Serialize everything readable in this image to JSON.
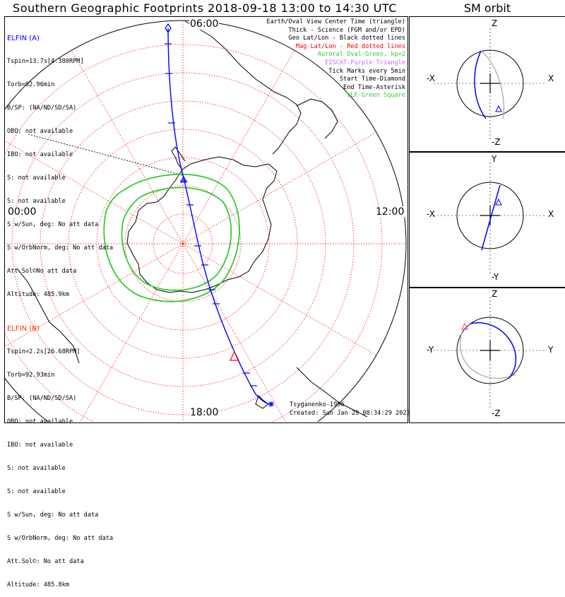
{
  "title": "Southern Geographic Footprints 2018-09-18 13:00 to 14:30 UTC",
  "sm_title": "SM orbit",
  "hours": {
    "top": "06:00",
    "left": "00:00",
    "right": "12:00",
    "bottom": "18:00"
  },
  "elfin_a": {
    "name": "ELFIN (A)",
    "color": "#0000ff",
    "lines": [
      "Tspin=13.7s[4.380RPM]",
      "Torb=92.96min",
      "B/SP: (NA/ND/SD/SA)",
      "OBO: not available",
      "IBO: not available",
      "S: not available",
      "S: not available",
      "S w/Sun, deg: No att data",
      "S w/OrbNorm, deg: No att data",
      "Att.Sol©No att data",
      "Altitude: 485.9km"
    ]
  },
  "elfin_b": {
    "name": "ELFIN (B)",
    "color": "#ff3300",
    "lines": [
      "Tspin=2.2s[26.68RPM]",
      "Torb=92.93min",
      "B/SP: (NA/ND/SD/SA)",
      "OBO: not available",
      "IBO: not available",
      "S: not available",
      "S: not available",
      "S w/Sun, deg: No att data",
      "S w/OrbNorm, deg: No att data",
      "Att.Sol©: No att data",
      "Altitude: 485.8km"
    ]
  },
  "legend": [
    {
      "text": "Earth/Oval View Center Time (triangle)",
      "color": "#000000"
    },
    {
      "text": "Thick - Science (FGM and/or EPD)",
      "color": "#000000"
    },
    {
      "text": "Geo Lat/Lon - Black dotted lines",
      "color": "#000000"
    },
    {
      "text": "Mag Lat/Lon - Red dotted lines",
      "color": "#ff0000"
    },
    {
      "text": "Auroral Oval-Green, kp=2",
      "color": "#33cc33"
    },
    {
      "text": "EISCAT-Purple Triangle",
      "color": "#cc66ff"
    },
    {
      "text": "Tick Marks every 5min",
      "color": "#000000"
    },
    {
      "text": "Start Time-Diamond",
      "color": "#000000"
    },
    {
      "text": "End Time-Asterisk",
      "color": "#000000"
    },
    {
      "text": "VLF-Green Square",
      "color": "#33cc33"
    }
  ],
  "credit": {
    "author": "Tsyganenko-1996",
    "created": "Created: Sun Jan 29 08:34:29 2023"
  },
  "sm_panels": [
    {
      "top": "Z",
      "bottom": "-Z",
      "left": "-X",
      "right": "X"
    },
    {
      "top": "Y",
      "bottom": "-Y",
      "left": "-X",
      "right": "X"
    },
    {
      "top": "Z",
      "bottom": "-Z",
      "left": "-Y",
      "right": "Y"
    }
  ],
  "colors": {
    "grid_mag": "#ff0000",
    "oval": "#33cc33",
    "track": "#0000ff",
    "ghost_track": "#aaaaaa"
  }
}
